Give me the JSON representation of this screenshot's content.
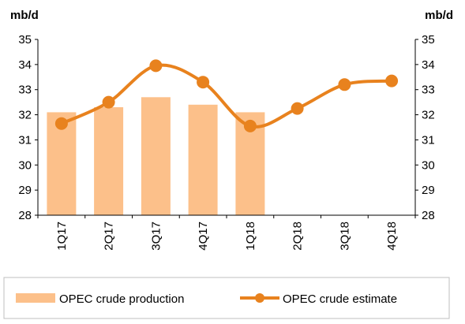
{
  "chart_data": {
    "type": "bar",
    "categories": [
      "1Q17",
      "2Q17",
      "3Q17",
      "4Q17",
      "1Q18",
      "2Q18",
      "3Q18",
      "4Q18"
    ],
    "series": [
      {
        "name": "OPEC crude production",
        "type": "bar",
        "values": [
          32.1,
          32.3,
          32.7,
          32.4,
          32.1,
          null,
          null,
          null
        ],
        "color": "#FCC08A"
      },
      {
        "name": "OPEC crude estimate",
        "type": "line",
        "smooth": true,
        "values": [
          31.65,
          32.5,
          33.95,
          33.3,
          31.55,
          32.25,
          33.2,
          33.35
        ],
        "color": "#E8821E"
      }
    ],
    "left_axis": {
      "label": "mb/d",
      "ylim": [
        28,
        35
      ],
      "ticks": [
        "28",
        "29",
        "30",
        "31",
        "32",
        "33",
        "34",
        "35"
      ]
    },
    "right_axis": {
      "label": "mb/d",
      "ylim": [
        28,
        35
      ],
      "ticks": [
        "28",
        "29",
        "30",
        "31",
        "32",
        "33",
        "34",
        "35"
      ]
    },
    "grid": false,
    "legend": "bottom"
  }
}
